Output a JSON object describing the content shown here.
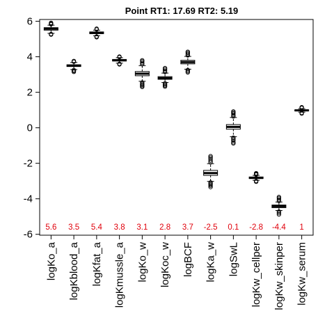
{
  "chart_data": {
    "type": "boxplot",
    "title": "Point  RT1:  17.69   RT2:  5.19",
    "xlabel": "",
    "ylabel": "",
    "ylim": [
      -6.05,
      6.1
    ],
    "yticks": [
      -6,
      -4,
      -2,
      0,
      2,
      4,
      6
    ],
    "grid": false,
    "label_color": "#e0000b",
    "categories": [
      "logKo_a",
      "logKblood_a",
      "logKfat_a",
      "logKmussle_a",
      "logKo_w",
      "logKoc_w",
      "logBCF",
      "logKa_w",
      "logSwL",
      "logKw_cellper",
      "logKw_skinper",
      "logKw_serum"
    ],
    "median_labels": [
      "5.6",
      "3.5",
      "5.4",
      "3.8",
      "3.1",
      "2.8",
      "3.7",
      "-2.5",
      "0.1",
      "-2.8",
      "-4.4",
      "1"
    ],
    "boxes": [
      {
        "median": 5.58,
        "q1": 5.5,
        "q3": 5.64,
        "lo": 5.32,
        "hi": 5.78,
        "out_lo": [
          5.28,
          5.25
        ],
        "out_hi": [
          5.83,
          5.87,
          5.91
        ]
      },
      {
        "median": 3.5,
        "q1": 3.45,
        "q3": 3.55,
        "lo": 3.28,
        "hi": 3.68,
        "out_lo": [
          3.25,
          3.2,
          3.15
        ],
        "out_hi": [
          3.72,
          3.76
        ]
      },
      {
        "median": 5.35,
        "q1": 5.3,
        "q3": 5.4,
        "lo": 5.18,
        "hi": 5.5,
        "out_lo": [
          5.14,
          5.1
        ],
        "out_hi": [
          5.54,
          5.58
        ]
      },
      {
        "median": 3.8,
        "q1": 3.76,
        "q3": 3.85,
        "lo": 3.64,
        "hi": 3.95,
        "out_lo": [
          3.6,
          3.57
        ],
        "out_hi": [
          3.98,
          4.01
        ]
      },
      {
        "median": 3.05,
        "q1": 2.93,
        "q3": 3.17,
        "lo": 2.62,
        "hi": 3.5,
        "out_lo": [
          2.55,
          2.48,
          2.42,
          2.36,
          2.3
        ],
        "out_hi": [
          3.58,
          3.66,
          3.74,
          3.8
        ]
      },
      {
        "median": 2.8,
        "q1": 2.73,
        "q3": 2.88,
        "lo": 2.55,
        "hi": 3.08,
        "out_lo": [
          2.5,
          2.44,
          2.38,
          2.32
        ],
        "out_hi": [
          3.14,
          3.22,
          3.3,
          3.36
        ]
      },
      {
        "median": 3.7,
        "q1": 3.6,
        "q3": 3.8,
        "lo": 3.3,
        "hi": 4.02,
        "out_lo": [
          3.25,
          3.18,
          3.12
        ],
        "out_hi": [
          4.08,
          4.15,
          4.22,
          4.28
        ]
      },
      {
        "median": -2.55,
        "q1": -2.68,
        "q3": -2.4,
        "lo": -3.02,
        "hi": -2.02,
        "out_lo": [
          -3.08,
          -3.14,
          -3.2,
          -3.26,
          -3.34
        ],
        "out_hi": [
          -1.95,
          -1.85,
          -1.76,
          -1.68,
          -1.6
        ]
      },
      {
        "median": 0.05,
        "q1": -0.08,
        "q3": 0.18,
        "lo": -0.5,
        "hi": 0.58,
        "out_lo": [
          -0.56,
          -0.64,
          -0.72,
          -0.82,
          -0.88
        ],
        "out_hi": [
          0.64,
          0.72,
          0.8,
          0.86,
          0.92
        ]
      },
      {
        "median": -2.82,
        "q1": -2.86,
        "q3": -2.77,
        "lo": -2.96,
        "hi": -2.68,
        "out_lo": [
          -3.0,
          -3.04
        ],
        "out_hi": [
          -2.64,
          -2.6,
          -2.56
        ]
      },
      {
        "median": -4.42,
        "q1": -4.5,
        "q3": -4.35,
        "lo": -4.66,
        "hi": -4.18,
        "out_lo": [
          -4.72,
          -4.8,
          -4.88
        ],
        "out_hi": [
          -4.12,
          -4.04,
          -3.96,
          -3.9
        ]
      },
      {
        "median": 0.98,
        "q1": 0.95,
        "q3": 1.01,
        "lo": 0.88,
        "hi": 1.08,
        "out_lo": [
          0.84,
          0.8
        ],
        "out_hi": [
          1.12,
          1.16
        ]
      }
    ]
  }
}
